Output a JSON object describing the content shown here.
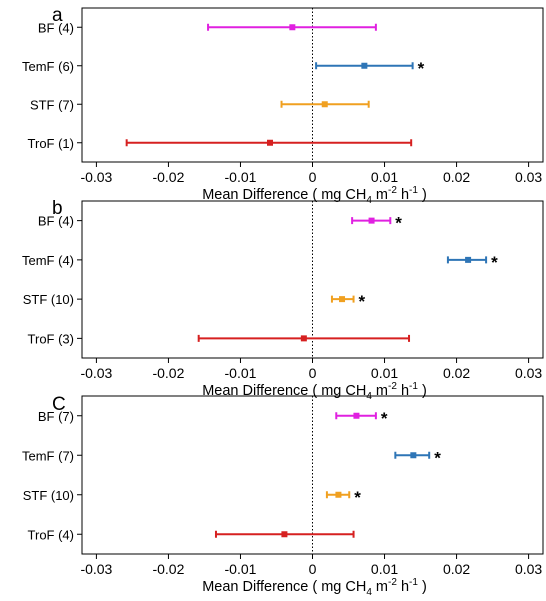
{
  "figure": {
    "background": "#ffffff",
    "series_colors": {
      "BF": "#e020e0",
      "TemF": "#2e75b6",
      "STF": "#f0a020",
      "TroF": "#d62020"
    }
  },
  "chart_data": [
    {
      "type": "errorbar",
      "panel_label": "a",
      "categories": [
        "BF (4)",
        "TemF (6)",
        "STF (7)",
        "TroF (1)"
      ],
      "series_keys": [
        "BF",
        "TemF",
        "STF",
        "TroF"
      ],
      "mean": [
        -0.0028,
        0.0072,
        0.0017,
        -0.0059
      ],
      "lower": [
        -0.0145,
        0.0005,
        -0.0043,
        -0.0258
      ],
      "upper": [
        0.0088,
        0.0139,
        0.0078,
        0.0137
      ],
      "significant": [
        false,
        true,
        false,
        false
      ],
      "marker": "*",
      "xlim": [
        -0.032,
        0.032
      ],
      "xticks": [
        -0.03,
        -0.02,
        -0.01,
        0,
        0.01,
        0.02,
        0.03
      ],
      "xtick_labels": [
        "-0.03",
        "-0.02",
        "-0.01",
        "0",
        "0.01",
        "0.02",
        "0.03"
      ],
      "zero_line": "dotted",
      "xlabel": "Mean Difference ( mg CH4 m-2 h-1 )",
      "xlabel_parts": {
        "pre": "Mean Difference ( mg CH",
        "sub": "4",
        "mid1": " m",
        "sup1": "-2",
        "mid2": " h",
        "sup2": "-1",
        "post": " )"
      },
      "grid": false,
      "legend": "none"
    },
    {
      "type": "errorbar",
      "panel_label": "b",
      "categories": [
        "BF (4)",
        "TemF (4)",
        "STF (10)",
        "TroF (3)"
      ],
      "series_keys": [
        "BF",
        "TemF",
        "STF",
        "TroF"
      ],
      "mean": [
        0.0082,
        0.0216,
        0.0041,
        -0.0012
      ],
      "lower": [
        0.0055,
        0.0188,
        0.0027,
        -0.0158
      ],
      "upper": [
        0.0108,
        0.0241,
        0.0057,
        0.0134
      ],
      "significant": [
        true,
        true,
        true,
        false
      ],
      "marker": "*",
      "xlim": [
        -0.032,
        0.032
      ],
      "xticks": [
        -0.03,
        -0.02,
        -0.01,
        0,
        0.01,
        0.02,
        0.03
      ],
      "xtick_labels": [
        "-0.03",
        "-0.02",
        "-0.01",
        "0",
        "0.01",
        "0.02",
        "0.03"
      ],
      "zero_line": "dotted",
      "xlabel": "Mean Difference ( mg CH4 m-2 h-1 )",
      "xlabel_parts": {
        "pre": "Mean Difference ( mg CH",
        "sub": "4",
        "mid1": " m",
        "sup1": "-2",
        "mid2": " h",
        "sup2": "-1",
        "post": " )"
      },
      "grid": false,
      "legend": "none"
    },
    {
      "type": "errorbar",
      "panel_label": "C",
      "categories": [
        "BF (7)",
        "TemF (7)",
        "STF (10)",
        "TroF (4)"
      ],
      "series_keys": [
        "BF",
        "TemF",
        "STF",
        "TroF"
      ],
      "mean": [
        0.0061,
        0.014,
        0.0036,
        -0.0039
      ],
      "lower": [
        0.0033,
        0.0115,
        0.002,
        -0.0134
      ],
      "upper": [
        0.0088,
        0.0162,
        0.0051,
        0.0057
      ],
      "significant": [
        true,
        true,
        true,
        false
      ],
      "marker": "*",
      "xlim": [
        -0.032,
        0.032
      ],
      "xticks": [
        -0.03,
        -0.02,
        -0.01,
        0,
        0.01,
        0.02,
        0.03
      ],
      "xtick_labels": [
        "-0.03",
        "-0.02",
        "-0.01",
        "0",
        "0.01",
        "0.02",
        "0.03"
      ],
      "zero_line": "dotted",
      "xlabel": "Mean Difference ( mg CH4 m-2 h-1 )",
      "xlabel_parts": {
        "pre": "Mean Difference ( mg CH",
        "sub": "4",
        "mid1": " m",
        "sup1": "-2",
        "mid2": " h",
        "sup2": "-1",
        "post": " )"
      },
      "grid": false,
      "legend": "none"
    }
  ]
}
